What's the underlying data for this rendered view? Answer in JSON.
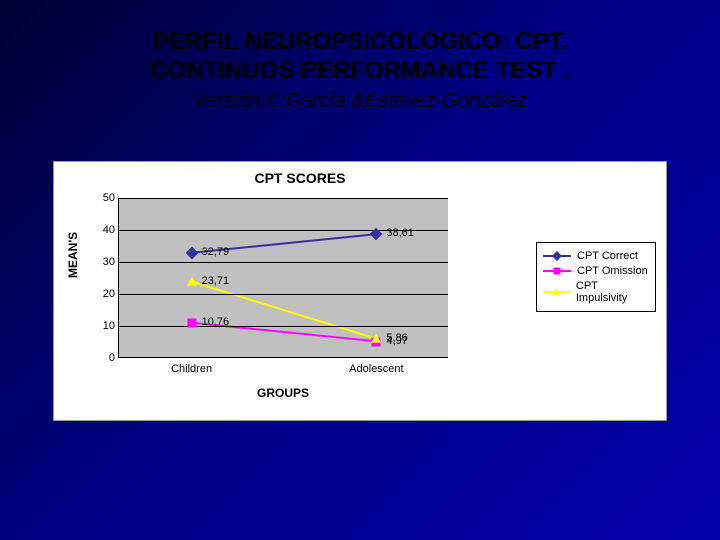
{
  "title": {
    "line1": "PERFIL NEUROPSICOLÓGICO: CPT.",
    "line2": "CONTINUOS PERFORMANCE TEST .",
    "subtitle": "Versión,©:García &Estevez-González"
  },
  "chart": {
    "type": "line",
    "title": "CPT SCORES",
    "title_fontsize": 14,
    "background_color": "#ffffff",
    "plot_background": "#c0c0c0",
    "grid_color": "#000000",
    "font_family": "Verdana",
    "xlabel": "GROUPS",
    "ylabel": "MEAN'S",
    "label_fontsize": 12,
    "tick_fontsize": 11,
    "ylim": [
      0,
      50
    ],
    "ytick_step": 10,
    "yticks": [
      0,
      10,
      20,
      30,
      40,
      50
    ],
    "categories": [
      "Children",
      "Adolescent"
    ],
    "x_positions_pct": [
      22,
      78
    ],
    "series": [
      {
        "name": "CPT Correct",
        "color": "#333399",
        "marker": "diamond",
        "line_width": 2,
        "values": [
          32.79,
          38.61
        ],
        "value_labels": [
          "32,79",
          "38,61"
        ]
      },
      {
        "name": "CPT Omission",
        "color": "#ff00ff",
        "marker": "square",
        "line_width": 2,
        "values": [
          10.76,
          4.97
        ],
        "value_labels": [
          "10,76",
          "4,97"
        ]
      },
      {
        "name": "CPT Impulsivity",
        "color": "#ffff00",
        "marker": "triangle",
        "line_width": 2,
        "values": [
          23.71,
          5.86
        ],
        "value_labels": [
          "23,71",
          "5,86"
        ]
      }
    ],
    "legend_position": "right"
  }
}
